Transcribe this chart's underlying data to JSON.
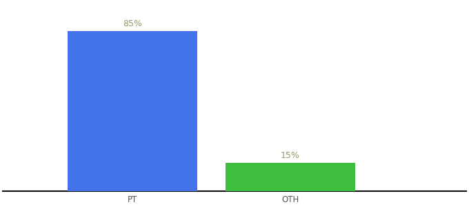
{
  "categories": [
    "PT",
    "OTH"
  ],
  "values": [
    85,
    15
  ],
  "bar_colors": [
    "#4472EA",
    "#3DBF3D"
  ],
  "label_color": "#999966",
  "label_fontsize": 9,
  "tick_fontsize": 8.5,
  "tick_color": "#555555",
  "background_color": "#ffffff",
  "ylim": [
    0,
    100
  ],
  "bar_width": 0.28,
  "label_format": "{}%",
  "axis_line_color": "#111111",
  "x_positions": [
    0.28,
    0.62
  ],
  "xlim": [
    0.0,
    1.0
  ]
}
